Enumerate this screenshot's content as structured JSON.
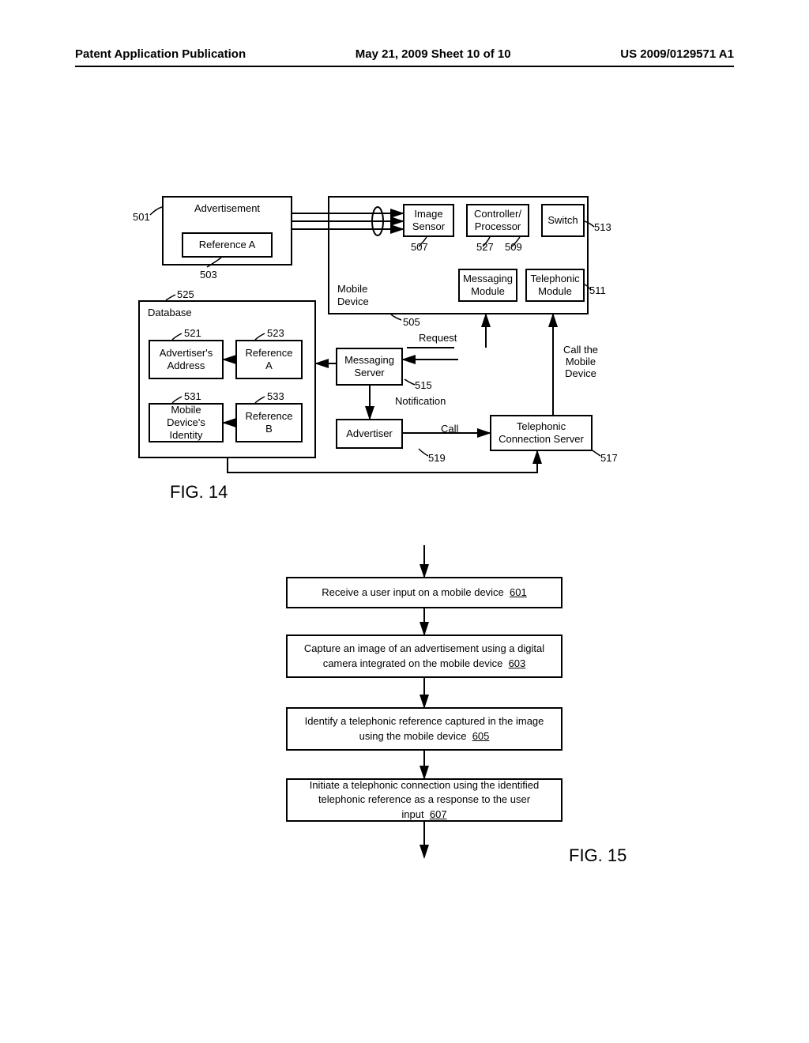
{
  "header": {
    "left": "Patent Application Publication",
    "center": "May 21, 2009  Sheet 10 of 10",
    "right": "US 2009/0129571 A1"
  },
  "fig14": {
    "label": "FIG. 14",
    "boxes": {
      "advertisement": "Advertisement",
      "reference_a": "Reference A",
      "image_sensor": "Image\nSensor",
      "controller_processor": "Controller/\nProcessor",
      "switch": "Switch",
      "mobile_device": "Mobile\nDevice",
      "messaging_module": "Messaging\nModule",
      "telephonic_module": "Telephonic\nModule",
      "database": "Database",
      "advertisers_address": "Advertiser's\nAddress",
      "ref_a2": "Reference\nA",
      "mobile_device_identity": "Mobile Device's\nIdentity",
      "ref_b": "Reference\nB",
      "messaging_server": "Messaging\nServer",
      "advertiser": "Advertiser",
      "telephonic_connection_server": "Telephonic\nConnection Server"
    },
    "refs": {
      "501": "501",
      "503": "503",
      "505": "505",
      "507": "507",
      "509": "509",
      "511": "511",
      "513": "513",
      "515": "515",
      "517": "517",
      "519": "519",
      "521": "521",
      "523": "523",
      "525": "525",
      "527": "527",
      "531": "531",
      "533": "533"
    },
    "edge_labels": {
      "request": "Request",
      "notification": "Notification",
      "call": "Call",
      "call_mobile": "Call the\nMobile Device"
    }
  },
  "fig15": {
    "label": "FIG. 15",
    "steps": {
      "601": {
        "text": "Receive a user input on a mobile device",
        "ref": "601"
      },
      "603": {
        "text": "Capture an image of an advertisement using a digital\ncamera integrated on the mobile device",
        "ref": "603"
      },
      "605": {
        "text": "Identify a telephonic reference captured in the image\nusing the mobile device",
        "ref": "605"
      },
      "607": {
        "text": "Initiate a telephonic connection using the identified\ntelephonic reference as a response to the user input",
        "ref": "607"
      }
    }
  },
  "style": {
    "stroke": "#000000",
    "stroke_width": 2,
    "bg": "#ffffff",
    "font_size_box": 13,
    "font_size_fig": 22
  }
}
